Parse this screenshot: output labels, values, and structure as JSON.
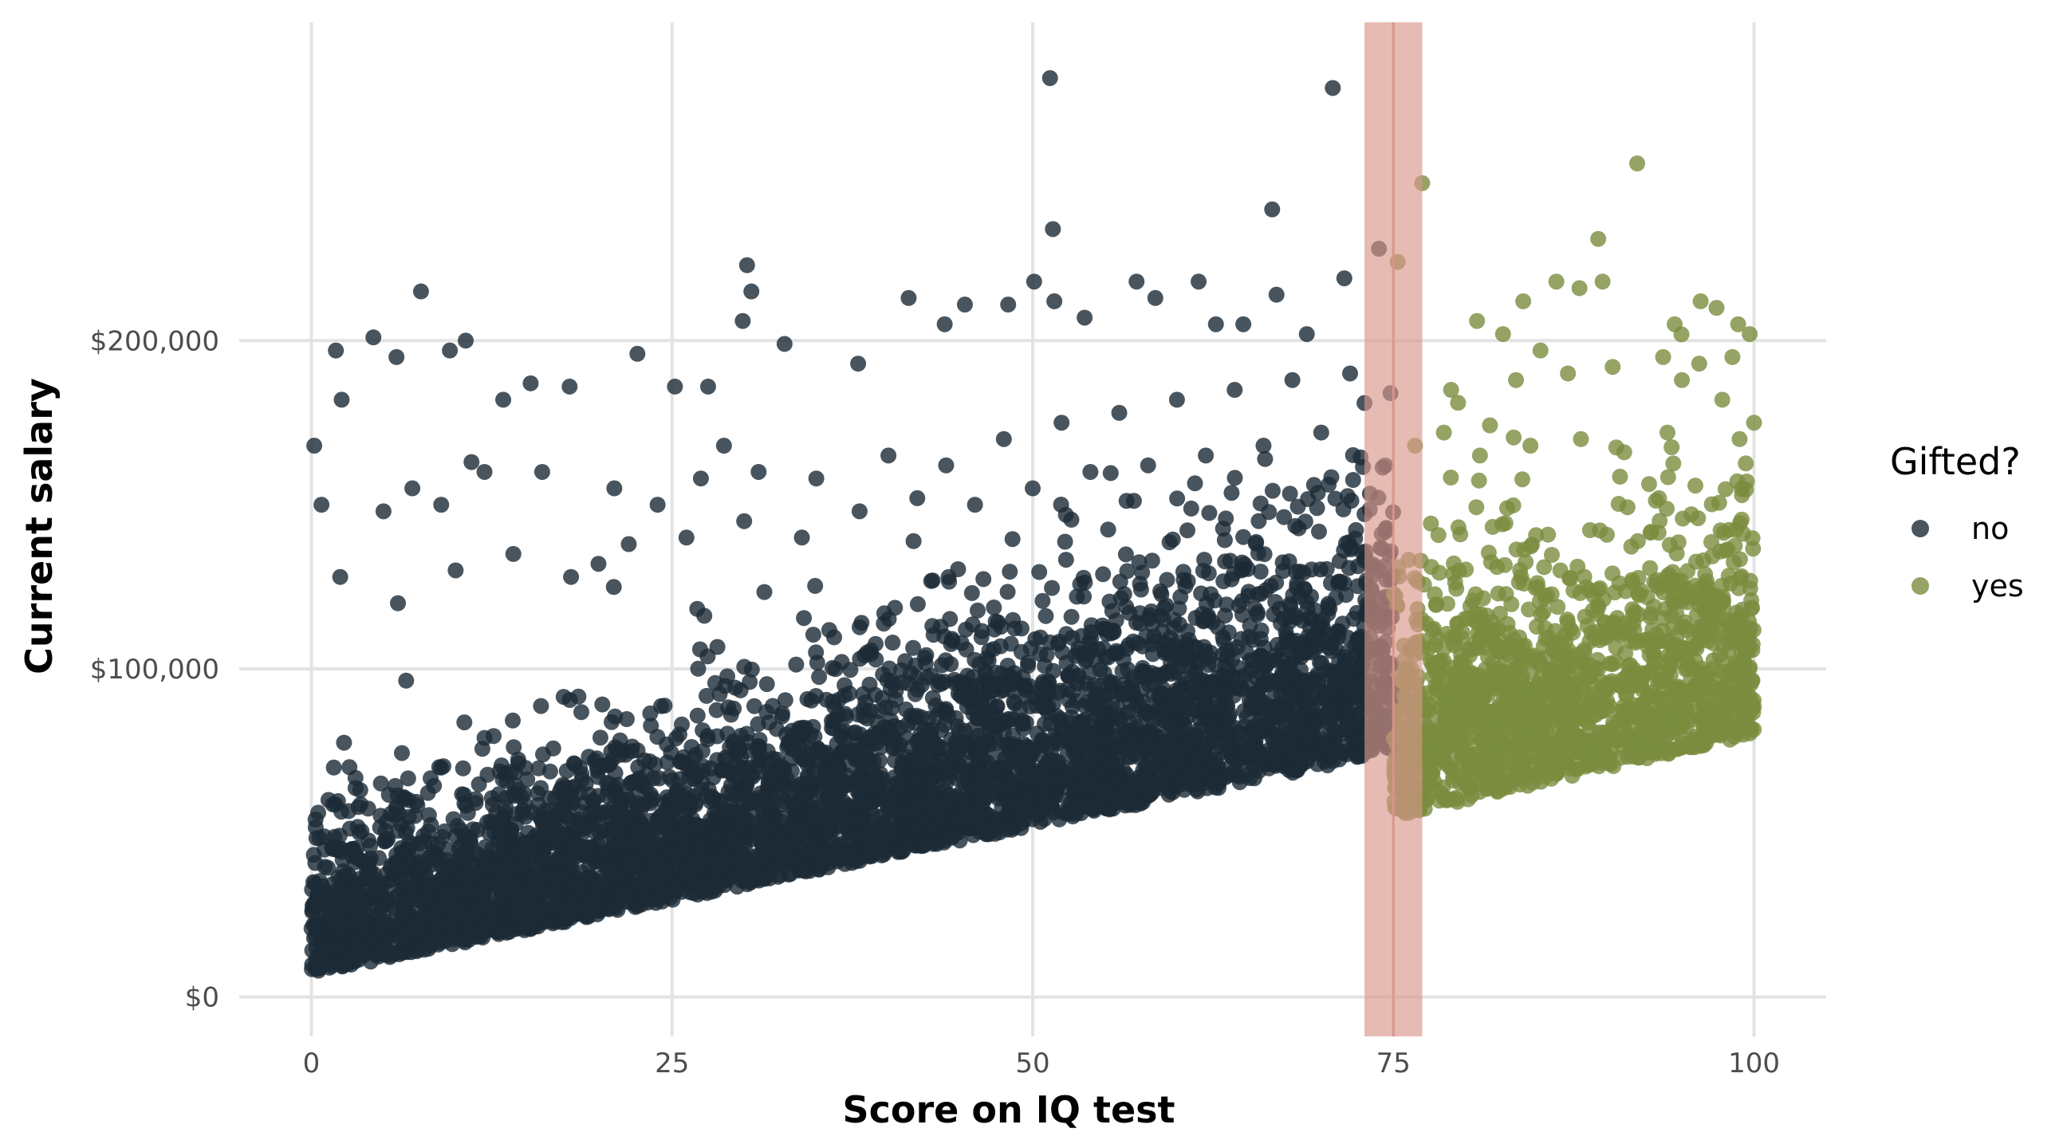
{
  "chart_data": {
    "type": "scatter",
    "title": "",
    "xlabel": "Score on IQ test",
    "ylabel": "Current salary",
    "xlim": [
      -5,
      105
    ],
    "ylim": [
      -12000,
      297000
    ],
    "x_ticks": [
      0,
      25,
      50,
      75,
      100
    ],
    "x_tick_labels": [
      "0",
      "25",
      "50",
      "75",
      "100"
    ],
    "y_ticks": [
      0,
      100000,
      200000
    ],
    "y_tick_labels": [
      "$0",
      "$100,000",
      "$200,000"
    ],
    "grid": true,
    "threshold_band": {
      "xmin": 73,
      "xmax": 77,
      "center": 75,
      "color": "#d9968a"
    },
    "legend": {
      "title": "Gifted?",
      "position": "right",
      "entries": [
        {
          "label": "no",
          "color": "#1b2a36"
        },
        {
          "label": "yes",
          "color": "#7a8c3e"
        }
      ]
    },
    "series": [
      {
        "name": "no",
        "color": "#1b2a36",
        "points": [
          [
            0.2,
            168000
          ],
          [
            0.7,
            150000
          ],
          [
            1.7,
            197000
          ],
          [
            2.1,
            182000
          ],
          [
            4.3,
            201000
          ],
          [
            5.9,
            195000
          ],
          [
            7.6,
            215000
          ],
          [
            9.6,
            197000
          ],
          [
            10.7,
            200000
          ],
          [
            11.1,
            163000
          ],
          [
            13.3,
            182000
          ],
          [
            15.2,
            187000
          ],
          [
            17.9,
            186000
          ],
          [
            19.9,
            132000
          ],
          [
            22.6,
            196000
          ],
          [
            25.2,
            186000
          ],
          [
            27.5,
            186000
          ],
          [
            28.6,
            168000
          ],
          [
            30.2,
            223000
          ],
          [
            30.5,
            215000
          ],
          [
            29.9,
            206000
          ],
          [
            32.8,
            199000
          ],
          [
            37.9,
            193000
          ],
          [
            41.4,
            213000
          ],
          [
            43.9,
            205000
          ],
          [
            45.3,
            211000
          ],
          [
            48.3,
            211000
          ],
          [
            50.1,
            218000
          ],
          [
            51.2,
            280000
          ],
          [
            51.4,
            234000
          ],
          [
            51.5,
            212000
          ],
          [
            53.6,
            207000
          ],
          [
            57.2,
            218000
          ],
          [
            58.5,
            213000
          ],
          [
            61.5,
            218000
          ],
          [
            62.7,
            205000
          ],
          [
            64.6,
            205000
          ],
          [
            66.6,
            240000
          ],
          [
            66.9,
            214000
          ],
          [
            69.0,
            202000
          ],
          [
            70.8,
            277000
          ],
          [
            71.6,
            219000
          ],
          [
            73.0,
            181000
          ],
          [
            74.0,
            228000
          ],
          [
            74.8,
            184000
          ],
          [
            5.0,
            148000
          ],
          [
            7.0,
            155000
          ],
          [
            9.0,
            150000
          ],
          [
            12.0,
            160000
          ],
          [
            16.0,
            160000
          ],
          [
            21.0,
            155000
          ],
          [
            24.0,
            150000
          ],
          [
            27.0,
            158000
          ],
          [
            31.0,
            160000
          ],
          [
            35.0,
            158000
          ],
          [
            40.0,
            165000
          ],
          [
            44.0,
            162000
          ],
          [
            48.0,
            170000
          ],
          [
            52.0,
            175000
          ],
          [
            56.0,
            178000
          ],
          [
            60.0,
            182000
          ],
          [
            64.0,
            185000
          ],
          [
            68.0,
            188000
          ],
          [
            72.0,
            190000
          ],
          [
            2.0,
            128000
          ],
          [
            6.0,
            120000
          ],
          [
            10.0,
            130000
          ],
          [
            14.0,
            135000
          ],
          [
            18.0,
            128000
          ],
          [
            22.0,
            138000
          ],
          [
            26.0,
            140000
          ],
          [
            30.0,
            145000
          ],
          [
            34.0,
            140000
          ],
          [
            38.0,
            148000
          ],
          [
            42.0,
            152000
          ],
          [
            46.0,
            150000
          ],
          [
            50.0,
            155000
          ],
          [
            54.0,
            160000
          ],
          [
            58.0,
            162000
          ],
          [
            62.0,
            165000
          ],
          [
            66.0,
            168000
          ],
          [
            70.0,
            172000
          ]
        ]
      },
      {
        "name": "yes",
        "color": "#7a8c3e",
        "points": [
          [
            77.0,
            248000
          ],
          [
            91.9,
            254000
          ],
          [
            75.3,
            224000
          ],
          [
            89.2,
            231000
          ],
          [
            84.0,
            212000
          ],
          [
            86.3,
            218000
          ],
          [
            87.9,
            216000
          ],
          [
            89.5,
            218000
          ],
          [
            96.3,
            212000
          ],
          [
            97.4,
            210000
          ],
          [
            98.9,
            205000
          ],
          [
            94.5,
            205000
          ],
          [
            99.7,
            202000
          ],
          [
            80.8,
            206000
          ],
          [
            82.6,
            202000
          ],
          [
            85.2,
            197000
          ],
          [
            93.7,
            195000
          ],
          [
            96.2,
            193000
          ],
          [
            98.5,
            195000
          ],
          [
            79.0,
            185000
          ],
          [
            83.5,
            188000
          ],
          [
            87.1,
            190000
          ],
          [
            90.2,
            192000
          ],
          [
            95.0,
            188000
          ],
          [
            97.8,
            182000
          ],
          [
            100.0,
            175000
          ],
          [
            76.5,
            168000
          ],
          [
            78.5,
            172000
          ],
          [
            81.0,
            165000
          ],
          [
            84.5,
            168000
          ],
          [
            88.0,
            170000
          ],
          [
            91.0,
            166000
          ],
          [
            94.0,
            172000
          ],
          [
            99.0,
            170000
          ]
        ]
      }
    ]
  }
}
